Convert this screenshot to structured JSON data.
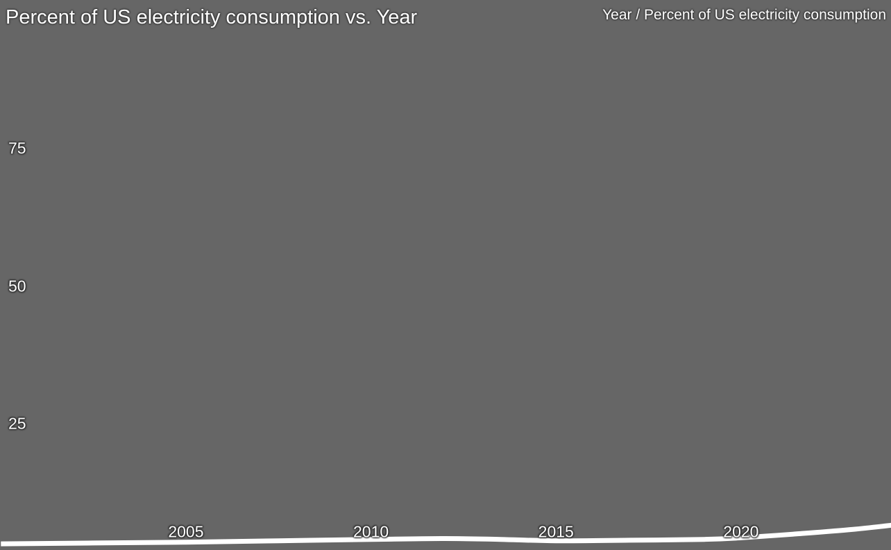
{
  "chart": {
    "title": "Percent of US electricity consumption vs. Year",
    "corner_label": "Year / Percent of US electricity consumption",
    "background_color": "#666666",
    "text_color": "#ffffff",
    "line_color": "#ffffff"
  },
  "chart_data": {
    "type": "line",
    "title": "Percent of US electricity consumption vs. Year",
    "xlabel": "Year",
    "ylabel": "Percent of US electricity consumption",
    "x_ticks": [
      2005,
      2010,
      2015,
      2020
    ],
    "y_ticks": [
      25,
      50,
      75
    ],
    "xlim": [
      2000,
      2024.1
    ],
    "ylim": [
      0,
      102
    ],
    "grid": false,
    "legend": "none",
    "series": [
      {
        "name": "Percent of US electricity consumption",
        "x": [
          2000,
          2002.5,
          2005,
          2007.5,
          2010,
          2012,
          2013.5,
          2015,
          2017,
          2019,
          2020,
          2021.5,
          2023,
          2024.1
        ],
        "y": [
          3.2,
          3.35,
          3.5,
          3.75,
          4.0,
          4.15,
          4.0,
          3.75,
          3.85,
          4.0,
          4.3,
          5.0,
          5.8,
          6.6
        ]
      }
    ]
  }
}
